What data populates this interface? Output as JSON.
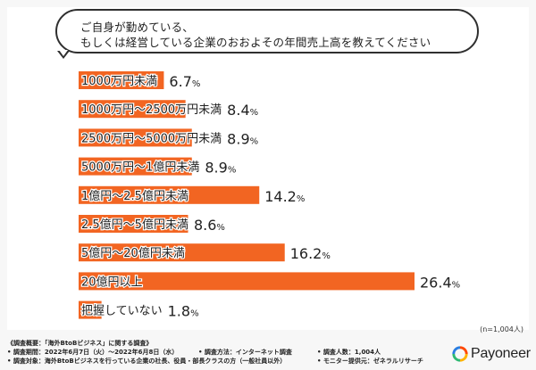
{
  "question": {
    "line1": "ご自身が勤めている、",
    "line2": "もしくは経営している企業のおおよその年間売上高を教えてください"
  },
  "sample_note": "(n=1,004人)",
  "footer": {
    "title": "《調査概要：「海外BtoBビジネス」に関する調査》",
    "period": "• 調査期間：2022年6月7日（火）～2022年6月8日（水）",
    "method": "• 調査方法：インターネット調査",
    "respondents": "• 調査人数：1,004人",
    "target": "• 調査対象：海外BtoBビジネスを行っている企業の社長、役員・部長クラスの方（一般社員以外）",
    "provider": "• モニター提供元：ゼネラルリサーチ"
  },
  "brand": {
    "name": "Payoneer"
  },
  "colors": {
    "bar": "#f26522",
    "text": "#222222"
  },
  "chart_data": {
    "type": "bar",
    "orientation": "horizontal",
    "categories": [
      "1000万円未満",
      "1000万円～2500万円未満",
      "2500万円～5000万円未満",
      "5000万円～1億円未満",
      "1億円～2.5億円未満",
      "2.5億円～5億円未満",
      "5億円～20億円未満",
      "20億円以上",
      "把握していない"
    ],
    "values": [
      6.7,
      8.4,
      8.9,
      8.9,
      14.2,
      8.6,
      16.2,
      26.4,
      1.8
    ],
    "value_labels": [
      "6.7%",
      "8.4%",
      "8.9%",
      "8.9%",
      "14.2%",
      "8.6%",
      "16.2%",
      "26.4%",
      "1.8%"
    ],
    "unit": "%"
  }
}
